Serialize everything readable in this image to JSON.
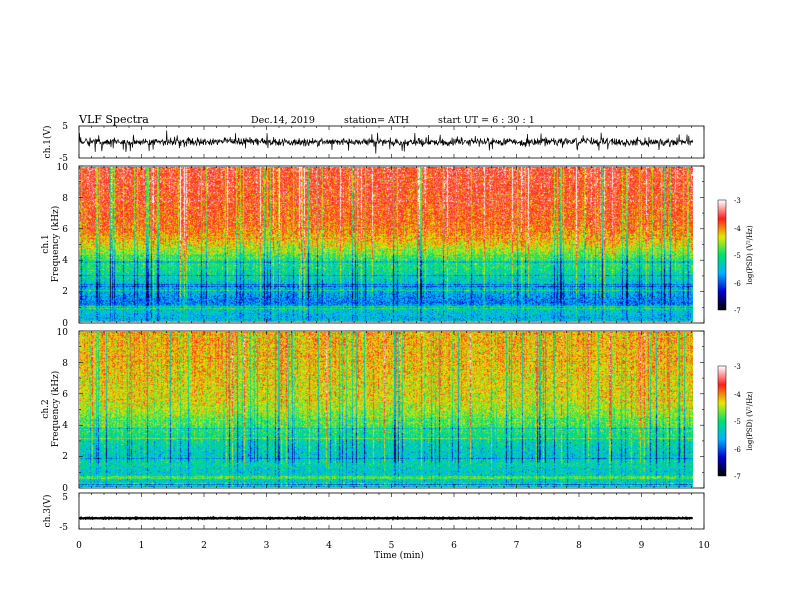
{
  "header": {
    "title": "VLF  Spectra",
    "date": "Dec.14, 2019",
    "station": "station= ATH",
    "start_ut": "start  UT  =   6  : 30 : 1"
  },
  "chart_data": {
    "type": "heatmap",
    "x_axis": {
      "label": "Time (min)",
      "range": [
        0,
        10
      ],
      "ticks": [
        "0",
        "1",
        "2",
        "3",
        "4",
        "5",
        "6",
        "7",
        "8",
        "9",
        "10"
      ],
      "data_end": 9.82
    },
    "panels": [
      {
        "id": "ch1-waveform",
        "type": "line",
        "ylabel": "ch.1(V)",
        "yticks": [
          "5",
          "-5"
        ],
        "ylim": [
          -5,
          5
        ],
        "baseline": 0,
        "noise_amplitude": 1.6
      },
      {
        "id": "ch1-spectrogram",
        "type": "heatmap",
        "channel_label": "ch.1",
        "ylabel": "Frequency (kHz)",
        "yticks": [
          "0",
          "2",
          "4",
          "6",
          "8",
          "10"
        ],
        "ylim": [
          0,
          10
        ],
        "mean_log_psd_profile": [
          {
            "f": 0.0,
            "v": -5.5
          },
          {
            "f": 0.2,
            "v": -5.6
          },
          {
            "f": 0.8,
            "v": -5.4
          },
          {
            "f": 1.2,
            "v": -5.9
          },
          {
            "f": 2.0,
            "v": -5.6
          },
          {
            "f": 3.0,
            "v": -5.2
          },
          {
            "f": 4.0,
            "v": -4.9
          },
          {
            "f": 5.0,
            "v": -4.3
          },
          {
            "f": 6.0,
            "v": -3.9
          },
          {
            "f": 8.0,
            "v": -3.7
          },
          {
            "f": 10.0,
            "v": -3.6
          }
        ],
        "colorbar": {
          "label": "log(PSD) (V²/Hz)",
          "ticks": [
            "-3",
            "-4",
            "-5",
            "-6",
            "-7"
          ],
          "range": [
            -7,
            -3
          ]
        }
      },
      {
        "id": "ch2-spectrogram",
        "type": "heatmap",
        "channel_label": "ch.2",
        "ylabel": "Frequency (kHz)",
        "yticks": [
          "0",
          "2",
          "4",
          "6",
          "8",
          "10"
        ],
        "ylim": [
          0,
          10
        ],
        "mean_log_psd_profile": [
          {
            "f": 0.0,
            "v": -5.5
          },
          {
            "f": 0.5,
            "v": -5.3
          },
          {
            "f": 1.0,
            "v": -5.4
          },
          {
            "f": 1.5,
            "v": -5.2
          },
          {
            "f": 2.0,
            "v": -5.4
          },
          {
            "f": 3.0,
            "v": -5.2
          },
          {
            "f": 4.0,
            "v": -4.8
          },
          {
            "f": 5.0,
            "v": -4.5
          },
          {
            "f": 6.0,
            "v": -4.3
          },
          {
            "f": 8.0,
            "v": -4.2
          },
          {
            "f": 10.0,
            "v": -4.1
          }
        ],
        "colorbar": {
          "label": "log(PSD) (V²/Hz)",
          "ticks": [
            "-3",
            "-4",
            "-5",
            "-6",
            "-7"
          ],
          "range": [
            -7,
            -3
          ]
        }
      },
      {
        "id": "ch3-waveform",
        "type": "line",
        "ylabel": "ch.3(V)",
        "yticks": [
          "5",
          "-5"
        ],
        "ylim": [
          -5,
          5
        ],
        "baseline": -2,
        "noise_amplitude": 0.15
      }
    ],
    "colormap": [
      "#000000",
      "#0000d0",
      "#00b4ff",
      "#00e070",
      "#e8e800",
      "#ff2020",
      "#ffffff"
    ],
    "grid": false,
    "legend": "colorbar-right"
  }
}
